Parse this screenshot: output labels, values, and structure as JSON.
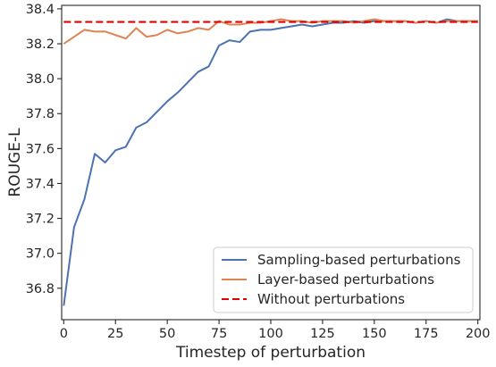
{
  "chart_data": {
    "type": "line",
    "title": "",
    "xlabel": "Timestep of perturbation",
    "ylabel": "ROUGE-L",
    "xlim": [
      -1,
      201
    ],
    "ylim": [
      36.62,
      38.42
    ],
    "xticks": [
      0,
      25,
      50,
      75,
      100,
      125,
      150,
      175,
      200
    ],
    "yticks": [
      36.8,
      37.0,
      37.2,
      37.4,
      37.6,
      37.8,
      38.0,
      38.2,
      38.4
    ],
    "grid": false,
    "legend_position": "lower-right",
    "series": [
      {
        "name": "Sampling-based perturbations",
        "color": "#4c72b0",
        "style": "solid",
        "x": [
          0,
          5,
          10,
          15,
          20,
          25,
          30,
          35,
          40,
          45,
          50,
          55,
          60,
          65,
          70,
          75,
          80,
          85,
          90,
          95,
          100,
          105,
          110,
          115,
          120,
          125,
          130,
          135,
          140,
          145,
          150,
          155,
          160,
          165,
          170,
          175,
          180,
          185,
          190,
          195,
          200
        ],
        "values": [
          36.7,
          37.15,
          37.31,
          37.57,
          37.52,
          37.59,
          37.61,
          37.72,
          37.75,
          37.81,
          37.87,
          37.92,
          37.98,
          38.04,
          38.07,
          38.19,
          38.22,
          38.21,
          38.27,
          38.28,
          38.28,
          38.29,
          38.3,
          38.31,
          38.3,
          38.31,
          38.32,
          38.32,
          38.33,
          38.32,
          38.33,
          38.33,
          38.33,
          38.33,
          38.32,
          38.33,
          38.32,
          38.34,
          38.33,
          38.33,
          38.33
        ]
      },
      {
        "name": "Layer-based perturbations",
        "color": "#dd8452",
        "style": "solid",
        "x": [
          0,
          5,
          10,
          15,
          20,
          25,
          30,
          35,
          40,
          45,
          50,
          55,
          60,
          65,
          70,
          75,
          80,
          85,
          90,
          95,
          100,
          105,
          110,
          115,
          120,
          125,
          130,
          135,
          140,
          145,
          150,
          155,
          160,
          165,
          170,
          175,
          180,
          185,
          190,
          195,
          200
        ],
        "values": [
          38.2,
          38.24,
          38.28,
          38.27,
          38.27,
          38.25,
          38.23,
          38.29,
          38.24,
          38.25,
          38.28,
          38.26,
          38.27,
          38.29,
          38.28,
          38.33,
          38.31,
          38.31,
          38.32,
          38.32,
          38.33,
          38.34,
          38.33,
          38.33,
          38.32,
          38.33,
          38.33,
          38.33,
          38.32,
          38.33,
          38.34,
          38.33,
          38.33,
          38.33,
          38.32,
          38.33,
          38.32,
          38.33,
          38.33,
          38.33,
          38.33
        ]
      },
      {
        "name": "Without perturbations",
        "color": "#e00000",
        "style": "dashed",
        "x": [
          0,
          200
        ],
        "values": [
          38.325,
          38.325
        ]
      }
    ]
  }
}
